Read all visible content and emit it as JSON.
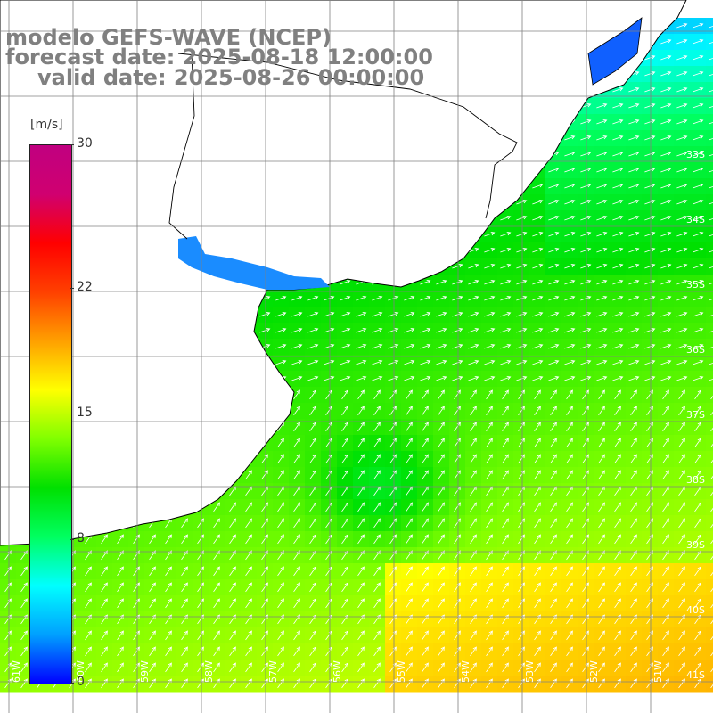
{
  "title": {
    "line1": "modelo GEFS-WAVE (NCEP)",
    "line2": "forecast date: 2025-08-18 12:00:00",
    "line3": "valid date: 2025-08-26 00:00:00"
  },
  "colorbar": {
    "unit": "[m/s]",
    "ticks": [
      {
        "value": 30,
        "label": "30"
      },
      {
        "value": 22,
        "label": "22"
      },
      {
        "value": 15,
        "label": "15"
      },
      {
        "value": 8,
        "label": "8"
      },
      {
        "value": 0,
        "label": "0"
      }
    ],
    "stops": [
      "#0000ff",
      "#00a0ff",
      "#00ffff",
      "#00ff60",
      "#00e000",
      "#80ff00",
      "#ffff00",
      "#ffa000",
      "#ff4000",
      "#ff0000",
      "#d00070",
      "#c00080"
    ]
  },
  "grid": {
    "lat_labels": [
      "33S",
      "34S",
      "35S",
      "36S",
      "37S",
      "38S",
      "39S",
      "40S",
      "41S"
    ],
    "lon_labels": [
      "61W",
      "60W",
      "59W",
      "58W",
      "57W",
      "56W",
      "55W",
      "54W",
      "53W",
      "52W",
      "51W"
    ]
  },
  "colors": {
    "land": "#ffffff",
    "coast": "#000000",
    "grid": "#808080",
    "arrow": "#ffffff"
  }
}
